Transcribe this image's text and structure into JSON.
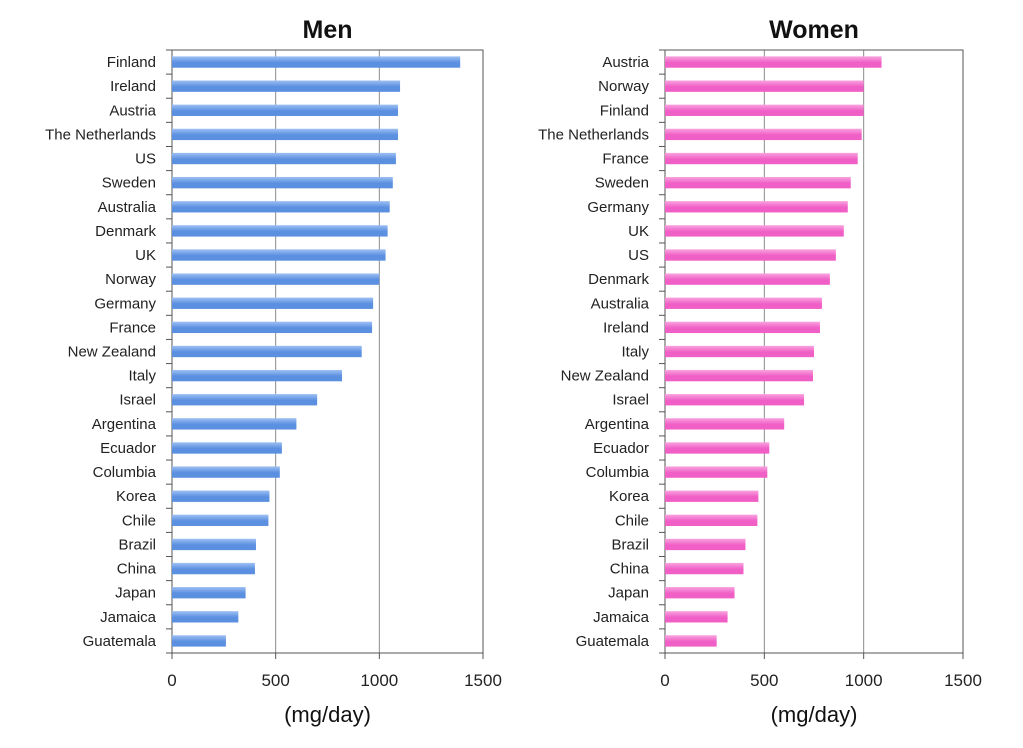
{
  "chart_data": [
    {
      "type": "bar",
      "orientation": "horizontal",
      "title": "Men",
      "xlabel": "(mg/day)",
      "ylabel": "",
      "xlim": [
        0,
        1500
      ],
      "xticks": [
        0,
        500,
        1000,
        1500
      ],
      "grid": true,
      "colors": {
        "bar": "#5b8fe0",
        "bar_light": "#9dc0f3"
      },
      "categories": [
        "Finland",
        "Ireland",
        "Austria",
        "The Netherlands",
        "US",
        "Sweden",
        "Australia",
        "Denmark",
        "UK",
        "Norway",
        "Germany",
        "France",
        "New Zealand",
        "Italy",
        "Israel",
        "Argentina",
        "Ecuador",
        "Columbia",
        "Korea",
        "Chile",
        "Brazil",
        "China",
        "Japan",
        "Jamaica",
        "Guatemala"
      ],
      "values": [
        1390,
        1100,
        1090,
        1090,
        1080,
        1065,
        1050,
        1040,
        1030,
        1000,
        970,
        965,
        915,
        820,
        700,
        600,
        530,
        520,
        470,
        465,
        405,
        400,
        355,
        320,
        260
      ]
    },
    {
      "type": "bar",
      "orientation": "horizontal",
      "title": "Women",
      "xlabel": "(mg/day)",
      "ylabel": "",
      "xlim": [
        0,
        1500
      ],
      "xticks": [
        0,
        500,
        1000,
        1500
      ],
      "grid": true,
      "colors": {
        "bar": "#f05fc6",
        "bar_light": "#f9a3df"
      },
      "categories": [
        "Austria",
        "Norway",
        "Finland",
        "The Netherlands",
        "France",
        "Sweden",
        "Germany",
        "UK",
        "US",
        "Denmark",
        "Australia",
        "Ireland",
        "Italy",
        "New Zealand",
        "Israel",
        "Argentina",
        "Ecuador",
        "Columbia",
        "Korea",
        "Chile",
        "Brazil",
        "China",
        "Japan",
        "Jamaica",
        "Guatemala"
      ],
      "values": [
        1090,
        1000,
        1000,
        990,
        970,
        935,
        920,
        900,
        860,
        830,
        790,
        780,
        750,
        745,
        700,
        600,
        525,
        515,
        470,
        465,
        405,
        395,
        350,
        315,
        260
      ]
    }
  ]
}
